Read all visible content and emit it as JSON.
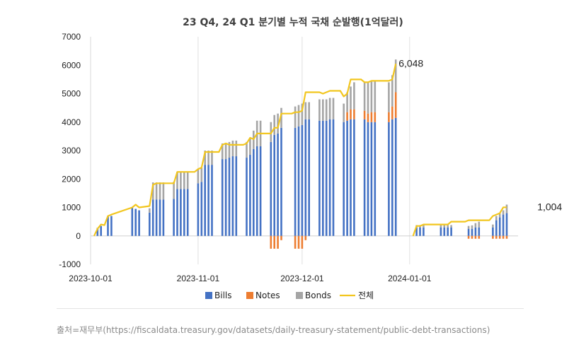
{
  "chart_data": {
    "type": "bar+line",
    "title": "23 Q4, 24 Q1 분기별 누적 국채 순발행(1억달러)",
    "xlabel": "",
    "ylabel": "",
    "ylim": [
      -1000,
      7000
    ],
    "yticks": [
      "7000",
      "6000",
      "5000",
      "4000",
      "3000",
      "2000",
      "1000",
      "0",
      "-1000"
    ],
    "xticks": [
      "2023-10-01",
      "2023-11-01",
      "2023-12-01",
      "2024-01-01"
    ],
    "grid": "vertical",
    "legend_position": "bottom",
    "legend": [
      {
        "name": "Bills",
        "color": "#4472C4",
        "kind": "box"
      },
      {
        "name": "Notes",
        "color": "#ED7D31",
        "kind": "box"
      },
      {
        "name": "Bonds",
        "color": "#A5A5A5",
        "kind": "box"
      },
      {
        "name": "전체",
        "color": "#F2C61F",
        "kind": "line"
      }
    ],
    "annotations": [
      {
        "text": "6,048",
        "day": 88,
        "value": 6048
      },
      {
        "text": "1,004",
        "day": 128,
        "value": 1004
      }
    ],
    "series": [
      {
        "name": "Bills",
        "color": "#4472C4",
        "bars": [
          [
            2,
            280
          ],
          [
            3,
            350
          ],
          [
            5,
            700
          ],
          [
            6,
            700
          ],
          [
            12,
            1000
          ],
          [
            13,
            950
          ],
          [
            14,
            900
          ],
          [
            17,
            820
          ],
          [
            18,
            1280
          ],
          [
            19,
            1280
          ],
          [
            20,
            1280
          ],
          [
            21,
            1280
          ],
          [
            24,
            1300
          ],
          [
            25,
            1650
          ],
          [
            26,
            1650
          ],
          [
            27,
            1650
          ],
          [
            28,
            1650
          ],
          [
            31,
            1850
          ],
          [
            32,
            1900
          ],
          [
            33,
            2500
          ],
          [
            34,
            2500
          ],
          [
            35,
            2500
          ],
          [
            38,
            2700
          ],
          [
            39,
            2700
          ],
          [
            40,
            2750
          ],
          [
            41,
            2800
          ],
          [
            42,
            2800
          ],
          [
            45,
            2750
          ],
          [
            46,
            2850
          ],
          [
            47,
            3050
          ],
          [
            48,
            3150
          ],
          [
            49,
            3150
          ],
          [
            52,
            3300
          ],
          [
            53,
            3550
          ],
          [
            54,
            3600
          ],
          [
            55,
            3800
          ],
          [
            59,
            3800
          ],
          [
            60,
            3850
          ],
          [
            61,
            3900
          ],
          [
            62,
            4100
          ],
          [
            63,
            4100
          ],
          [
            66,
            4050
          ],
          [
            67,
            4050
          ],
          [
            68,
            4050
          ],
          [
            69,
            4100
          ],
          [
            70,
            4100
          ],
          [
            73,
            4000
          ],
          [
            74,
            4050
          ],
          [
            75,
            4100
          ],
          [
            76,
            4100
          ],
          [
            79,
            4100
          ],
          [
            80,
            4000
          ],
          [
            81,
            4000
          ],
          [
            82,
            4000
          ],
          [
            86,
            4000
          ],
          [
            87,
            4100
          ],
          [
            88,
            4150
          ],
          [
            94,
            300
          ],
          [
            95,
            300
          ],
          [
            96,
            300
          ],
          [
            101,
            300
          ],
          [
            102,
            300
          ],
          [
            103,
            300
          ],
          [
            104,
            300
          ],
          [
            109,
            250
          ],
          [
            110,
            250
          ],
          [
            111,
            300
          ],
          [
            112,
            300
          ],
          [
            116,
            300
          ],
          [
            117,
            550
          ],
          [
            118,
            650
          ],
          [
            119,
            750
          ],
          [
            120,
            800
          ]
        ]
      },
      {
        "name": "Notes",
        "color": "#ED7D31",
        "bars": [
          [
            2,
            0
          ],
          [
            3,
            0
          ],
          [
            5,
            0
          ],
          [
            6,
            0
          ],
          [
            12,
            0
          ],
          [
            13,
            0
          ],
          [
            14,
            0
          ],
          [
            17,
            0
          ],
          [
            18,
            0
          ],
          [
            19,
            0
          ],
          [
            20,
            0
          ],
          [
            21,
            0
          ],
          [
            24,
            0
          ],
          [
            25,
            0
          ],
          [
            26,
            0
          ],
          [
            27,
            0
          ],
          [
            28,
            0
          ],
          [
            31,
            0
          ],
          [
            32,
            0
          ],
          [
            33,
            0
          ],
          [
            34,
            0
          ],
          [
            35,
            0
          ],
          [
            38,
            0
          ],
          [
            39,
            0
          ],
          [
            40,
            0
          ],
          [
            41,
            0
          ],
          [
            42,
            0
          ],
          [
            45,
            0
          ],
          [
            46,
            0
          ],
          [
            47,
            0
          ],
          [
            48,
            0
          ],
          [
            49,
            0
          ],
          [
            52,
            -450
          ],
          [
            53,
            -450
          ],
          [
            54,
            -450
          ],
          [
            55,
            -150
          ],
          [
            59,
            -450
          ],
          [
            60,
            -450
          ],
          [
            61,
            -450
          ],
          [
            62,
            -150
          ],
          [
            63,
            0
          ],
          [
            66,
            0
          ],
          [
            67,
            0
          ],
          [
            68,
            0
          ],
          [
            69,
            0
          ],
          [
            70,
            0
          ],
          [
            73,
            0
          ],
          [
            74,
            300
          ],
          [
            75,
            350
          ],
          [
            76,
            350
          ],
          [
            79,
            300
          ],
          [
            80,
            300
          ],
          [
            81,
            350
          ],
          [
            82,
            350
          ],
          [
            86,
            350
          ],
          [
            87,
            450
          ],
          [
            88,
            900
          ],
          [
            94,
            0
          ],
          [
            95,
            0
          ],
          [
            96,
            0
          ],
          [
            101,
            0
          ],
          [
            102,
            0
          ],
          [
            103,
            0
          ],
          [
            104,
            0
          ],
          [
            109,
            -100
          ],
          [
            110,
            -100
          ],
          [
            111,
            -100
          ],
          [
            112,
            -100
          ],
          [
            116,
            -100
          ],
          [
            117,
            -100
          ],
          [
            118,
            -100
          ],
          [
            119,
            -100
          ],
          [
            120,
            -100
          ]
        ]
      },
      {
        "name": "Bonds",
        "color": "#A5A5A5",
        "bars": [
          [
            2,
            0
          ],
          [
            3,
            0
          ],
          [
            5,
            0
          ],
          [
            6,
            0
          ],
          [
            12,
            0
          ],
          [
            13,
            0
          ],
          [
            14,
            0
          ],
          [
            17,
            150
          ],
          [
            18,
            600
          ],
          [
            19,
            600
          ],
          [
            20,
            600
          ],
          [
            21,
            600
          ],
          [
            24,
            600
          ],
          [
            25,
            600
          ],
          [
            26,
            600
          ],
          [
            27,
            600
          ],
          [
            28,
            600
          ],
          [
            31,
            500
          ],
          [
            32,
            500
          ],
          [
            33,
            500
          ],
          [
            34,
            500
          ],
          [
            35,
            500
          ],
          [
            38,
            550
          ],
          [
            39,
            550
          ],
          [
            40,
            550
          ],
          [
            41,
            550
          ],
          [
            42,
            550
          ],
          [
            45,
            550
          ],
          [
            46,
            600
          ],
          [
            47,
            650
          ],
          [
            48,
            900
          ],
          [
            49,
            900
          ],
          [
            52,
            700
          ],
          [
            53,
            700
          ],
          [
            54,
            700
          ],
          [
            55,
            700
          ],
          [
            59,
            750
          ],
          [
            60,
            750
          ],
          [
            61,
            750
          ],
          [
            62,
            600
          ],
          [
            63,
            600
          ],
          [
            66,
            750
          ],
          [
            67,
            750
          ],
          [
            68,
            750
          ],
          [
            69,
            750
          ],
          [
            70,
            750
          ],
          [
            73,
            650
          ],
          [
            74,
            700
          ],
          [
            75,
            800
          ],
          [
            76,
            950
          ],
          [
            79,
            1000
          ],
          [
            80,
            1100
          ],
          [
            81,
            1100
          ],
          [
            82,
            1100
          ],
          [
            86,
            1050
          ],
          [
            87,
            1100
          ],
          [
            88,
            1150
          ],
          [
            94,
            80
          ],
          [
            95,
            80
          ],
          [
            96,
            80
          ],
          [
            101,
            80
          ],
          [
            102,
            80
          ],
          [
            103,
            80
          ],
          [
            104,
            80
          ],
          [
            109,
            100
          ],
          [
            110,
            120
          ],
          [
            111,
            150
          ],
          [
            112,
            200
          ],
          [
            116,
            100
          ],
          [
            117,
            150
          ],
          [
            118,
            150
          ],
          [
            119,
            150
          ],
          [
            120,
            300
          ]
        ]
      }
    ],
    "total_line": [
      [
        1,
        0
      ],
      [
        2,
        250
      ],
      [
        3,
        400
      ],
      [
        4,
        380
      ],
      [
        5,
        700
      ],
      [
        6,
        750
      ],
      [
        12,
        1000
      ],
      [
        13,
        1100
      ],
      [
        14,
        1000
      ],
      [
        17,
        1050
      ],
      [
        18,
        1800
      ],
      [
        19,
        1850
      ],
      [
        20,
        1850
      ],
      [
        21,
        1850
      ],
      [
        24,
        1850
      ],
      [
        25,
        2250
      ],
      [
        26,
        2250
      ],
      [
        27,
        2250
      ],
      [
        28,
        2250
      ],
      [
        30,
        2250
      ],
      [
        31,
        2350
      ],
      [
        32,
        2400
      ],
      [
        33,
        2950
      ],
      [
        34,
        2950
      ],
      [
        35,
        2950
      ],
      [
        37,
        2950
      ],
      [
        38,
        3200
      ],
      [
        39,
        3250
      ],
      [
        40,
        3200
      ],
      [
        41,
        3200
      ],
      [
        42,
        3200
      ],
      [
        44,
        3200
      ],
      [
        45,
        3250
      ],
      [
        46,
        3450
      ],
      [
        47,
        3400
      ],
      [
        48,
        3600
      ],
      [
        49,
        3600
      ],
      [
        51,
        3600
      ],
      [
        52,
        3600
      ],
      [
        53,
        3800
      ],
      [
        54,
        3800
      ],
      [
        55,
        4300
      ],
      [
        58,
        4300
      ],
      [
        59,
        4350
      ],
      [
        60,
        4350
      ],
      [
        61,
        4400
      ],
      [
        62,
        5050
      ],
      [
        63,
        5050
      ],
      [
        65,
        5050
      ],
      [
        66,
        5050
      ],
      [
        67,
        5000
      ],
      [
        68,
        5050
      ],
      [
        69,
        5100
      ],
      [
        70,
        5100
      ],
      [
        72,
        5100
      ],
      [
        73,
        4900
      ],
      [
        74,
        5000
      ],
      [
        75,
        5500
      ],
      [
        76,
        5500
      ],
      [
        78,
        5500
      ],
      [
        79,
        5400
      ],
      [
        80,
        5400
      ],
      [
        81,
        5450
      ],
      [
        82,
        5450
      ],
      [
        85,
        5450
      ],
      [
        86,
        5450
      ],
      [
        87,
        5500
      ],
      [
        88,
        6048
      ],
      [
        93,
        0
      ],
      [
        94,
        350
      ],
      [
        95,
        350
      ],
      [
        96,
        400
      ],
      [
        99,
        400
      ],
      [
        101,
        400
      ],
      [
        102,
        400
      ],
      [
        103,
        400
      ],
      [
        104,
        500
      ],
      [
        108,
        500
      ],
      [
        109,
        550
      ],
      [
        110,
        550
      ],
      [
        111,
        550
      ],
      [
        112,
        550
      ],
      [
        115,
        550
      ],
      [
        116,
        700
      ],
      [
        117,
        750
      ],
      [
        118,
        800
      ],
      [
        119,
        1004
      ],
      [
        120,
        1004
      ]
    ]
  },
  "source_note": "출처=재무부(https://fiscaldata.treasury.gov/datasets/daily-treasury-statement/public-debt-transactions)"
}
